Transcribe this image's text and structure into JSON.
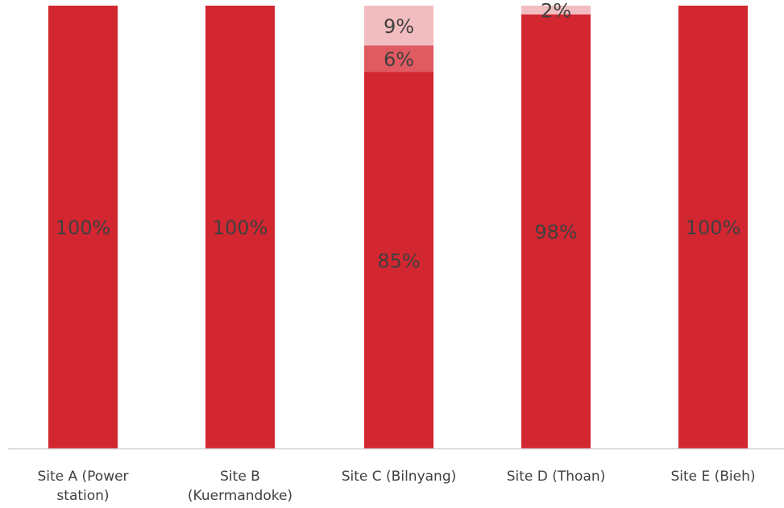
{
  "chart_data": {
    "type": "bar",
    "stacked": true,
    "title": "",
    "xlabel": "",
    "ylabel": "",
    "ylim": [
      0,
      100
    ],
    "grid": false,
    "legend": "none",
    "categories": [
      [
        "Site A (Power",
        "station)"
      ],
      [
        "Site B",
        "(Kuermandoke)"
      ],
      [
        "Site C (Bilnyang)"
      ],
      [
        "Site D (Thoan)"
      ],
      [
        "Site E (Bieh)"
      ]
    ],
    "series": [
      {
        "color": "#d22630",
        "values": [
          100,
          100,
          85,
          98,
          100
        ],
        "labels": [
          "100%",
          "100%",
          "85%",
          "98%",
          "100%"
        ]
      },
      {
        "color": "#e05a62",
        "values": [
          0,
          0,
          6,
          0,
          0
        ],
        "labels": [
          "",
          "",
          "6%",
          "",
          ""
        ]
      },
      {
        "color": "#f2bdc0",
        "values": [
          0,
          0,
          9,
          2,
          0
        ],
        "labels": [
          "",
          "",
          "9%",
          "2%",
          ""
        ]
      }
    ],
    "axis_line_color": "#d0d0d0",
    "label_color": "#404040"
  }
}
